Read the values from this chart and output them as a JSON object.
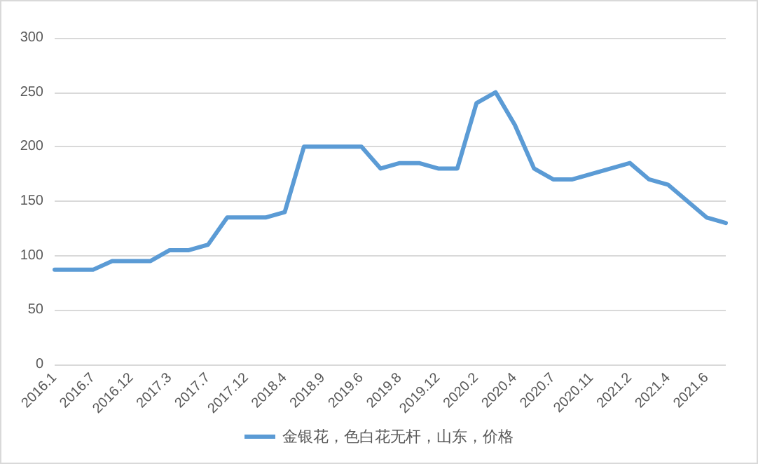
{
  "chart_data": {
    "type": "line",
    "categories": [
      "2016.1",
      null,
      "2016.7",
      null,
      "2016.12",
      null,
      "2017.3",
      null,
      "2017.7",
      null,
      "2017.12",
      null,
      "2018.4",
      null,
      "2018.9",
      null,
      "2019.6",
      null,
      "2019.8",
      null,
      "2019.12",
      null,
      "2020.2",
      null,
      "2020.4",
      null,
      "2020.7",
      null,
      "2020.11",
      null,
      "2021.2",
      null,
      "2021.4",
      null,
      "2021.6",
      null
    ],
    "series": [
      {
        "name": "金银花，色白花无杆，山东，价格",
        "color": "#5b9bd5",
        "values": [
          87,
          87,
          87,
          95,
          95,
          95,
          105,
          105,
          110,
          135,
          135,
          135,
          140,
          200,
          200,
          200,
          200,
          180,
          185,
          185,
          180,
          180,
          240,
          250,
          220,
          180,
          170,
          170,
          175,
          180,
          185,
          170,
          165,
          150,
          135,
          130
        ]
      }
    ],
    "ylim": [
      0,
      300
    ],
    "yticks": [
      0,
      50,
      100,
      150,
      200,
      250,
      300
    ],
    "grid": "y",
    "legend": "bottom",
    "marker": "none",
    "line_style": "solid"
  }
}
